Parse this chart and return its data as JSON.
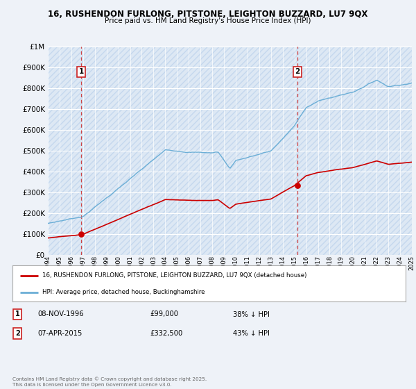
{
  "title_line1": "16, RUSHENDON FURLONG, PITSTONE, LEIGHTON BUZZARD, LU7 9QX",
  "title_line2": "Price paid vs. HM Land Registry's House Price Index (HPI)",
  "background_color": "#eef2f8",
  "plot_bg_color": "#dde8f4",
  "hatch_color": "#c5d8ee",
  "ylim": [
    0,
    1000000
  ],
  "yticks": [
    0,
    100000,
    200000,
    300000,
    400000,
    500000,
    600000,
    700000,
    800000,
    900000,
    1000000
  ],
  "ytick_labels": [
    "£0",
    "£100K",
    "£200K",
    "£300K",
    "£400K",
    "£500K",
    "£600K",
    "£700K",
    "£800K",
    "£900K",
    "£1M"
  ],
  "x_start_year": 1994,
  "x_end_year": 2025,
  "sale1_year": 1996.85,
  "sale1_price": 99000,
  "sale1_label": "1",
  "sale1_date": "08-NOV-1996",
  "sale1_pct": "38% ↓ HPI",
  "sale2_year": 2015.27,
  "sale2_price": 332500,
  "sale2_label": "2",
  "sale2_date": "07-APR-2015",
  "sale2_pct": "43% ↓ HPI",
  "red_line_color": "#cc0000",
  "blue_line_color": "#6baed6",
  "dot_color": "#cc0000",
  "dashed_line_color": "#cc3333",
  "legend_label1": "16, RUSHENDON FURLONG, PITSTONE, LEIGHTON BUZZARD, LU7 9QX (detached house)",
  "legend_label2": "HPI: Average price, detached house, Buckinghamshire",
  "footer": "Contains HM Land Registry data © Crown copyright and database right 2025.\nThis data is licensed under the Open Government Licence v3.0."
}
